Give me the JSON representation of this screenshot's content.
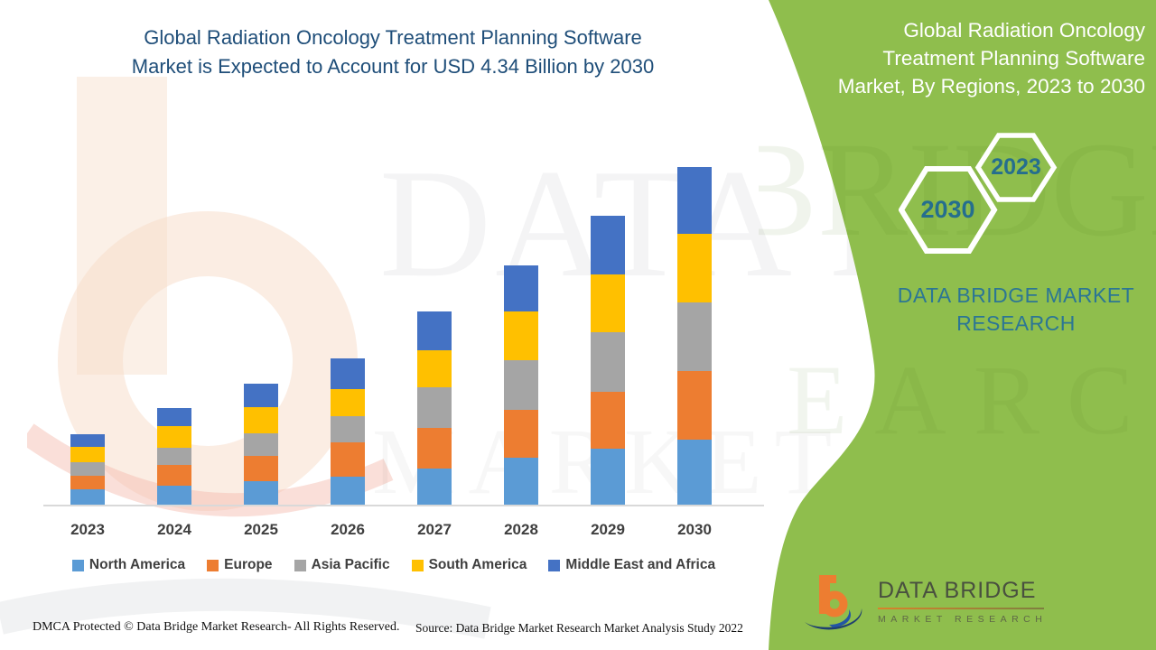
{
  "main_title": {
    "line1": "Global Radiation Oncology Treatment Planning Software",
    "line2": "Market is Expected to Account for USD 4.34 Billion by 2030",
    "color": "#1F4E79"
  },
  "side_panel": {
    "bg_color": "#8FBE4D",
    "title_line1": "Global Radiation Oncology",
    "title_line2": "Treatment Planning Software",
    "title_line3": "Market, By Regions, 2023 to 2030",
    "hexagon_back_year": "2023",
    "hexagon_front_year": "2030",
    "year_text_color": "#256E8E",
    "brand_line1": "DATA BRIDGE MARKET",
    "brand_line2": "RESEARCH",
    "brand_color": "#2C7694"
  },
  "chart_data": {
    "type": "bar",
    "stacked": true,
    "unit": "USD Billion",
    "title": "Global Radiation Oncology Treatment Planning Software Market is Expected to Account for USD 4.34 Billion by 2030",
    "categories": [
      "2023",
      "2024",
      "2025",
      "2026",
      "2027",
      "2028",
      "2029",
      "2030"
    ],
    "series": [
      {
        "name": "North America",
        "color": "#5B9BD5",
        "values": [
          0.2,
          0.24,
          0.3,
          0.36,
          0.47,
          0.6,
          0.72,
          0.84
        ]
      },
      {
        "name": "Europe",
        "color": "#ED7D31",
        "values": [
          0.18,
          0.27,
          0.32,
          0.44,
          0.52,
          0.62,
          0.73,
          0.88
        ]
      },
      {
        "name": "Asia Pacific",
        "color": "#A5A5A5",
        "values": [
          0.18,
          0.22,
          0.29,
          0.34,
          0.52,
          0.64,
          0.77,
          0.88
        ]
      },
      {
        "name": "South America",
        "color": "#FFC000",
        "values": [
          0.2,
          0.28,
          0.34,
          0.35,
          0.48,
          0.63,
          0.74,
          0.88
        ]
      },
      {
        "name": "Middle East and Africa",
        "color": "#4472C4",
        "values": [
          0.16,
          0.23,
          0.3,
          0.4,
          0.5,
          0.59,
          0.75,
          0.86
        ]
      }
    ],
    "totals_by_year": [
      0.92,
      1.24,
      1.55,
      1.89,
      2.49,
      3.08,
      3.71,
      4.34
    ],
    "annotation": "2030 total = USD 4.34 Billion",
    "ylim": [
      0,
      4.5
    ],
    "gridlines": false,
    "legend_position": "bottom",
    "x_axis_label_color": "#3F3F3F"
  },
  "footer": {
    "left": "DMCA Protected © Data Bridge Market Research- All Rights Reserved.",
    "source": "Source: Data Bridge Market Research Market Analysis Study 2022"
  },
  "logo": {
    "name": "DATA BRIDGE",
    "tagline": "MARKET RESEARCH"
  },
  "watermark": {
    "line1": "DATA BRIDGE",
    "line2": "MARKET RESEARCH"
  }
}
